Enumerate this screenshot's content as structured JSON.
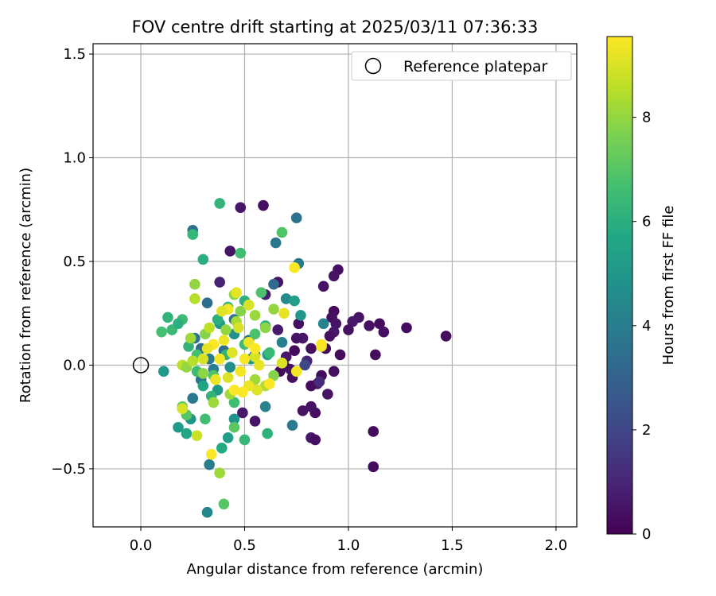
{
  "chart_data": {
    "type": "scatter",
    "title": "FOV centre drift starting at 2025/03/11 07:36:33",
    "xlabel": "Angular distance from reference (arcmin)",
    "ylabel": "Rotation from reference (arcmin)",
    "xlim": [
      -0.23,
      2.1
    ],
    "ylim": [
      -0.78,
      1.55
    ],
    "xticks": [
      0.0,
      0.5,
      1.0,
      1.5,
      2.0
    ],
    "xtick_labels": [
      "0.0",
      "0.5",
      "1.0",
      "1.5",
      "2.0"
    ],
    "yticks": [
      -0.5,
      0.0,
      0.5,
      1.0,
      1.5
    ],
    "ytick_labels": [
      "−0.5",
      "0.0",
      "0.5",
      "1.0",
      "1.5"
    ],
    "grid": true,
    "legend": {
      "position": "top-right",
      "entries": [
        "Reference platepar"
      ]
    },
    "reference_point": {
      "x": 0.0,
      "y": 0.0
    },
    "colorbar": {
      "label": "Hours from first FF file",
      "colormap": "viridis",
      "range": [
        0,
        9.55
      ],
      "ticks": [
        0,
        2,
        4,
        6,
        8
      ],
      "tick_labels": [
        "0",
        "2",
        "4",
        "6",
        "8"
      ]
    },
    "series": [
      {
        "points": [
          [
            1.47,
            0.14,
            0.3
          ],
          [
            1.28,
            0.18,
            0.3
          ],
          [
            1.17,
            0.16,
            0.4
          ],
          [
            1.15,
            0.2,
            0.3
          ],
          [
            1.1,
            0.19,
            0.4
          ],
          [
            1.05,
            0.23,
            0.5
          ],
          [
            1.02,
            0.21,
            0.6
          ],
          [
            1.0,
            0.17,
            0.4
          ],
          [
            0.96,
            0.05,
            0.3
          ],
          [
            0.95,
            0.46,
            0.4
          ],
          [
            0.93,
            0.43,
            0.5
          ],
          [
            0.93,
            0.26,
            0.3
          ],
          [
            0.92,
            0.23,
            0.4
          ],
          [
            0.94,
            0.2,
            0.5
          ],
          [
            0.93,
            0.16,
            0.6
          ],
          [
            0.91,
            0.14,
            0.4
          ],
          [
            0.89,
            0.08,
            0.3
          ],
          [
            0.88,
            0.38,
            0.5
          ],
          [
            1.13,
            0.05,
            0.3
          ],
          [
            1.12,
            -0.32,
            0.3
          ],
          [
            1.12,
            -0.49,
            0.3
          ],
          [
            0.93,
            -0.03,
            0.4
          ],
          [
            0.9,
            -0.14,
            0.5
          ],
          [
            0.87,
            -0.05,
            0.3
          ],
          [
            0.85,
            -0.09,
            0.6
          ],
          [
            0.82,
            -0.2,
            0.5
          ],
          [
            0.84,
            -0.23,
            0.4
          ],
          [
            0.82,
            -0.35,
            0.6
          ],
          [
            0.84,
            -0.36,
            0.4
          ],
          [
            0.78,
            -0.22,
            0.5
          ],
          [
            0.82,
            -0.1,
            0.3
          ],
          [
            0.82,
            0.08,
            0.4
          ],
          [
            0.78,
            0.13,
            0.6
          ],
          [
            0.76,
            0.2,
            0.4
          ],
          [
            0.75,
            0.13,
            0.5
          ],
          [
            0.74,
            0.07,
            0.3
          ],
          [
            0.73,
            -0.06,
            0.4
          ],
          [
            0.72,
            -0.02,
            0.5
          ],
          [
            0.7,
            0.04,
            0.6
          ],
          [
            0.69,
            0.0,
            0.4
          ],
          [
            0.67,
            -0.03,
            0.3
          ],
          [
            0.66,
            0.17,
            0.7
          ],
          [
            0.66,
            0.4,
            0.5
          ],
          [
            0.6,
            0.34,
            0.8
          ],
          [
            0.59,
            0.77,
            0.4
          ],
          [
            0.48,
            0.76,
            0.6
          ],
          [
            0.43,
            0.55,
            0.5
          ],
          [
            0.38,
            0.4,
            0.9
          ],
          [
            0.55,
            -0.27,
            0.5
          ],
          [
            0.49,
            -0.23,
            0.6
          ],
          [
            0.8,
            0.02,
            1.0
          ],
          [
            0.86,
            -0.08,
            1.2
          ],
          [
            0.79,
            0.0,
            2.0
          ],
          [
            0.75,
            0.71,
            3.6
          ],
          [
            0.76,
            0.49,
            3.9
          ],
          [
            0.65,
            0.59,
            3.8
          ],
          [
            0.64,
            0.39,
            3.2
          ],
          [
            0.25,
            0.65,
            3.5
          ],
          [
            0.32,
            0.3,
            3.4
          ],
          [
            0.26,
            0.13,
            3.7
          ],
          [
            0.29,
            0.08,
            3.3
          ],
          [
            0.33,
            0.03,
            3.9
          ],
          [
            0.4,
            0.07,
            3.2
          ],
          [
            0.45,
            0.22,
            3.6
          ],
          [
            0.52,
            0.12,
            3.8
          ],
          [
            0.55,
            0.05,
            3.5
          ],
          [
            0.35,
            -0.02,
            4.0
          ],
          [
            0.29,
            -0.07,
            3.6
          ],
          [
            0.25,
            -0.16,
            3.8
          ],
          [
            0.6,
            -0.2,
            4.2
          ],
          [
            0.73,
            -0.29,
            3.9
          ],
          [
            0.33,
            -0.48,
            4.1
          ],
          [
            0.32,
            -0.71,
            4.3
          ],
          [
            0.68,
            0.11,
            4.1
          ],
          [
            0.88,
            0.2,
            4.2
          ],
          [
            0.7,
            0.32,
            4.5
          ],
          [
            0.74,
            0.31,
            5.4
          ],
          [
            0.77,
            0.24,
            5.0
          ],
          [
            0.61,
            0.05,
            5.5
          ],
          [
            0.53,
            0.03,
            5.0
          ],
          [
            0.45,
            0.15,
            4.8
          ],
          [
            0.38,
            0.2,
            5.2
          ],
          [
            0.43,
            -0.01,
            4.7
          ],
          [
            0.37,
            -0.12,
            5.1
          ],
          [
            0.3,
            -0.1,
            5.6
          ],
          [
            0.45,
            -0.26,
            4.9
          ],
          [
            0.42,
            -0.35,
            5.3
          ],
          [
            0.39,
            -0.4,
            5.8
          ],
          [
            0.22,
            -0.33,
            5.6
          ],
          [
            0.18,
            -0.3,
            5.2
          ],
          [
            0.24,
            -0.26,
            4.9
          ],
          [
            0.11,
            -0.03,
            5.1
          ],
          [
            0.38,
            0.78,
            6.2
          ],
          [
            0.3,
            0.51,
            6.0
          ],
          [
            0.48,
            0.54,
            6.6
          ],
          [
            0.25,
            0.63,
            6.3
          ],
          [
            0.68,
            0.64,
            6.9
          ],
          [
            0.58,
            0.35,
            6.8
          ],
          [
            0.5,
            0.31,
            6.1
          ],
          [
            0.42,
            0.28,
            6.4
          ],
          [
            0.37,
            0.22,
            6.0
          ],
          [
            0.2,
            0.22,
            6.5
          ],
          [
            0.13,
            0.23,
            6.2
          ],
          [
            0.1,
            0.16,
            6.7
          ],
          [
            0.15,
            0.17,
            6.4
          ],
          [
            0.18,
            0.2,
            6.0
          ],
          [
            0.23,
            0.09,
            6.2
          ],
          [
            0.27,
            0.05,
            6.7
          ],
          [
            0.41,
            0.05,
            6.2
          ],
          [
            0.5,
            0.1,
            6.5
          ],
          [
            0.55,
            0.15,
            6.8
          ],
          [
            0.6,
            0.19,
            6.1
          ],
          [
            0.62,
            0.06,
            6.4
          ],
          [
            0.45,
            -0.18,
            6.6
          ],
          [
            0.5,
            -0.36,
            6.3
          ],
          [
            0.61,
            -0.33,
            6.1
          ],
          [
            0.4,
            -0.67,
            7.0
          ],
          [
            0.31,
            -0.26,
            6.6
          ],
          [
            0.34,
            -0.15,
            6.2
          ],
          [
            0.35,
            -0.05,
            6.9
          ],
          [
            0.27,
            -0.03,
            6.5
          ],
          [
            0.2,
            -0.2,
            7.3
          ],
          [
            0.22,
            -0.24,
            7.0
          ],
          [
            0.45,
            -0.3,
            7.1
          ],
          [
            0.38,
            -0.52,
            8.1
          ],
          [
            0.26,
            0.39,
            8.0
          ],
          [
            0.26,
            0.32,
            8.5
          ],
          [
            0.24,
            0.13,
            8.2
          ],
          [
            0.31,
            0.15,
            7.8
          ],
          [
            0.33,
            0.18,
            8.6
          ],
          [
            0.41,
            0.17,
            8.0
          ],
          [
            0.46,
            0.21,
            8.3
          ],
          [
            0.45,
            0.34,
            7.9
          ],
          [
            0.48,
            0.26,
            7.8
          ],
          [
            0.55,
            0.24,
            8.1
          ],
          [
            0.6,
            0.18,
            7.9
          ],
          [
            0.64,
            0.27,
            8.0
          ],
          [
            0.55,
            -0.07,
            8.2
          ],
          [
            0.64,
            -0.05,
            7.8
          ],
          [
            0.6,
            -0.1,
            8.4
          ],
          [
            0.35,
            -0.18,
            8.1
          ],
          [
            0.3,
            -0.04,
            7.9
          ],
          [
            0.2,
            0.0,
            8.6
          ],
          [
            0.22,
            -0.01,
            8.0
          ],
          [
            0.25,
            0.02,
            8.5
          ],
          [
            0.27,
            -0.34,
            8.8
          ],
          [
            0.2,
            -0.21,
            9.0
          ],
          [
            0.43,
            -0.14,
            8.2
          ],
          [
            0.74,
            0.47,
            9.5
          ],
          [
            0.69,
            0.25,
            9.2
          ],
          [
            0.87,
            0.09,
            9.3
          ],
          [
            0.87,
            0.1,
            9.5
          ],
          [
            0.68,
            0.01,
            9.0
          ],
          [
            0.75,
            -0.03,
            9.4
          ],
          [
            0.62,
            -0.09,
            9.5
          ],
          [
            0.56,
            -0.12,
            9.1
          ],
          [
            0.52,
            -0.1,
            9.3
          ],
          [
            0.49,
            -0.13,
            9.5
          ],
          [
            0.52,
            0.29,
            9.0
          ],
          [
            0.46,
            0.35,
            9.2
          ],
          [
            0.42,
            0.27,
            9.4
          ],
          [
            0.39,
            0.26,
            9.1
          ],
          [
            0.47,
            0.18,
            9.0
          ],
          [
            0.4,
            0.12,
            9.3
          ],
          [
            0.35,
            0.1,
            9.5
          ],
          [
            0.32,
            0.08,
            9.2
          ],
          [
            0.3,
            0.03,
            9.0
          ],
          [
            0.38,
            0.03,
            9.4
          ],
          [
            0.44,
            0.06,
            9.1
          ],
          [
            0.5,
            0.03,
            9.5
          ],
          [
            0.55,
            0.04,
            9.0
          ],
          [
            0.52,
            0.11,
            9.3
          ],
          [
            0.55,
            0.08,
            9.5
          ],
          [
            0.57,
            0.0,
            9.2
          ],
          [
            0.48,
            -0.03,
            9.4
          ],
          [
            0.42,
            -0.06,
            9.0
          ],
          [
            0.36,
            -0.07,
            9.3
          ],
          [
            0.45,
            -0.12,
            9.5
          ],
          [
            0.34,
            -0.43,
            9.5
          ]
        ]
      }
    ]
  }
}
